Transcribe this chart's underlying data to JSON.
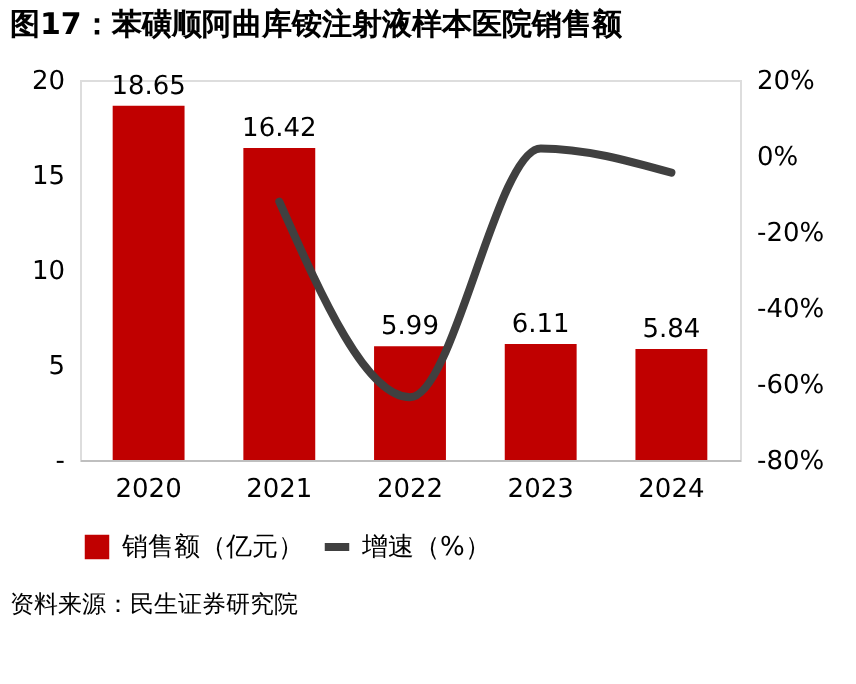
{
  "chart_data": {
    "type": "bar",
    "title": "图17：苯磺顺阿曲库铵注射液样本医院销售额",
    "categories": [
      "2020",
      "2021",
      "2022",
      "2023",
      "2024"
    ],
    "series": [
      {
        "name": "销售额（亿元）",
        "color": "#c00000",
        "values": [
          18.65,
          16.42,
          5.99,
          6.11,
          5.84
        ],
        "value_labels": [
          "18.65",
          "16.42",
          "5.99",
          "6.11",
          "5.84"
        ]
      },
      {
        "name": "增速（%）",
        "type": "line",
        "axis": "y2",
        "color": "#404040",
        "values": [
          null,
          -12,
          -63.5,
          2,
          -4.4
        ]
      }
    ],
    "ylim": [
      0,
      20
    ],
    "yticks": [
      {
        "value": 0,
        "label": "-"
      },
      5,
      10,
      15,
      20
    ],
    "y2lim": [
      -80,
      20
    ],
    "y2ticks": [
      {
        "value": -80,
        "label": "-80%"
      },
      {
        "value": -60,
        "label": "-60%"
      },
      {
        "value": -40,
        "label": "-40%"
      },
      {
        "value": -20,
        "label": "-20%"
      },
      {
        "value": 0,
        "label": "0%"
      },
      {
        "value": 20,
        "label": "20%"
      }
    ],
    "legend": "bottom",
    "grid": false,
    "marker": "none",
    "line_style": "solid",
    "annotations": [
      "资料来源：民生证券研究院"
    ]
  }
}
